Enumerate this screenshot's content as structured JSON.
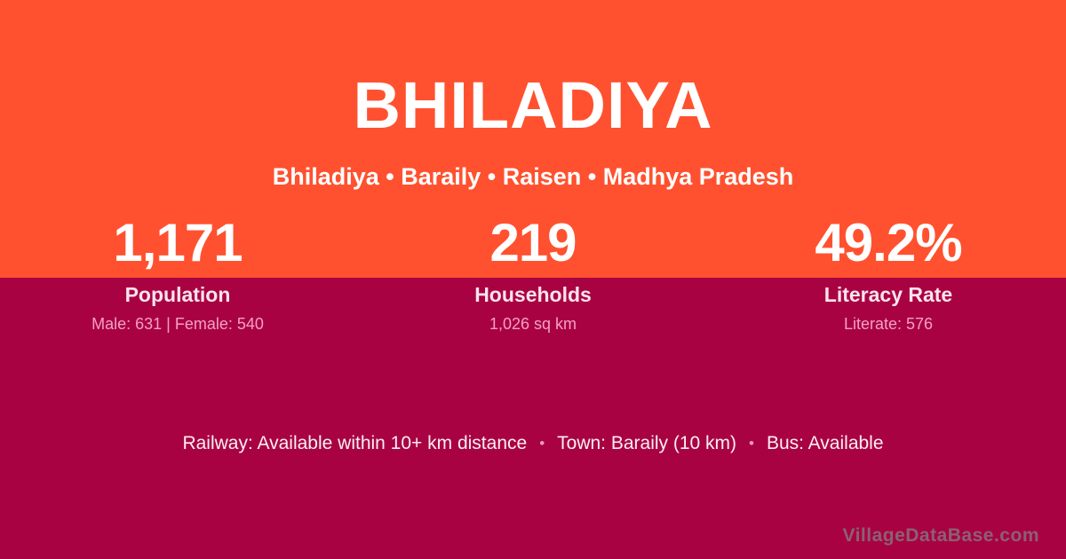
{
  "theme": {
    "band_orange": "#FF512F",
    "background_maroon": "#A90243",
    "text_white": "#FFFFFF",
    "label_light_pink": "#F9E4ED",
    "detail_pink": "#F4A0C3",
    "separator_pink": "#EC9BB5",
    "watermark_gray": "#8A6173"
  },
  "header": {
    "title": "BHILADIYA",
    "subtitle": "Bhiladiya • Baraily • Raisen • Madhya Pradesh"
  },
  "stats": [
    {
      "value": "1,171",
      "label": "Population",
      "detail": "Male: 631 | Female: 540"
    },
    {
      "value": "219",
      "label": "Households",
      "detail": "1,026 sq km"
    },
    {
      "value": "49.2%",
      "label": "Literacy Rate",
      "detail": "Literate: 576"
    }
  ],
  "info_line": {
    "items": [
      "Railway: Available within 10+ km distance",
      "Town: Baraily (10 km)",
      "Bus: Available"
    ],
    "separator": "•"
  },
  "watermark": "VillageDataBase.com"
}
